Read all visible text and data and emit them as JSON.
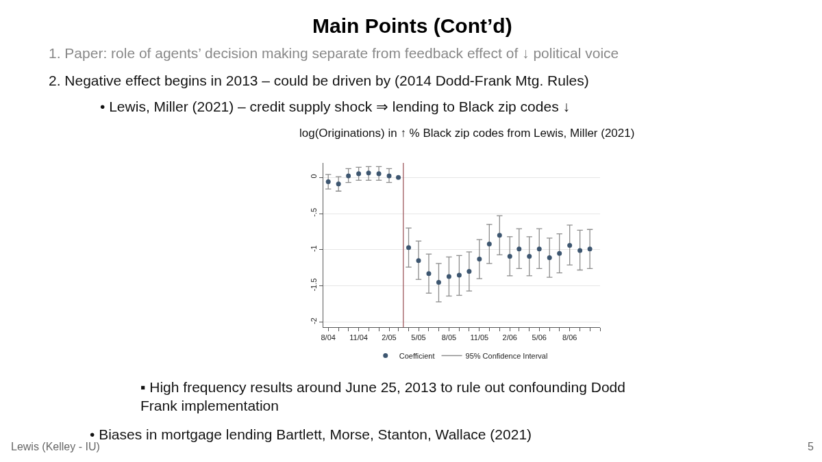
{
  "chart_data": {
    "type": "scatter",
    "title": "log(Originations) in ↑ % Black zip codes from Lewis, Miller (2021)",
    "x": [
      "2004-08",
      "2004-09",
      "2004-10",
      "2004-11",
      "2004-12",
      "2005-01",
      "2005-02",
      "2005-03",
      "2005-04",
      "2005-05",
      "2005-06",
      "2005-07",
      "2005-08",
      "2005-09",
      "2005-10",
      "2005-11",
      "2005-12",
      "2006-01",
      "2006-02",
      "2006-03",
      "2006-04",
      "2006-05",
      "2006-06",
      "2006-07",
      "2006-08",
      "2006-09",
      "2006-10"
    ],
    "series": [
      {
        "name": "Coefficient",
        "color": "#3d5670",
        "marker": "circle",
        "values": [
          -0.06,
          -0.09,
          0.02,
          0.05,
          0.06,
          0.05,
          0.02,
          0,
          -0.97,
          -1.15,
          -1.33,
          -1.45,
          -1.37,
          -1.35,
          -1.3,
          -1.13,
          -0.92,
          -0.8,
          -1.09,
          -0.99,
          -1.09,
          -0.99,
          -1.11,
          -1.05,
          -0.94,
          -1.01,
          -0.99
        ],
        "errors": [
          [
            -0.16,
            0.04
          ],
          [
            -0.19,
            0.01
          ],
          [
            -0.07,
            0.12
          ],
          [
            -0.04,
            0.14
          ],
          [
            -0.04,
            0.15
          ],
          [
            -0.04,
            0.15
          ],
          [
            -0.07,
            0.12
          ],
          null,
          [
            -1.24,
            -0.7
          ],
          [
            -1.41,
            -0.88
          ],
          [
            -1.6,
            -1.06
          ],
          [
            -1.72,
            -1.19
          ],
          [
            -1.64,
            -1.1
          ],
          [
            -1.63,
            -1.08
          ],
          [
            -1.57,
            -1.03
          ],
          [
            -1.4,
            -0.86
          ],
          [
            -1.19,
            -0.65
          ],
          [
            -1.07,
            -0.53
          ],
          [
            -1.36,
            -0.82
          ],
          [
            -1.26,
            -0.71
          ],
          [
            -1.36,
            -0.82
          ],
          [
            -1.26,
            -0.71
          ],
          [
            -1.38,
            -0.84
          ],
          [
            -1.32,
            -0.78
          ],
          [
            -1.21,
            -0.66
          ],
          [
            -1.28,
            -0.73
          ],
          [
            -1.26,
            -0.72
          ]
        ]
      }
    ],
    "xlim": [
      "2004-07-18",
      "2006-11-01"
    ],
    "xticks": [
      {
        "value": "2004-08",
        "label": "8/04"
      },
      {
        "value": "2004-09",
        "label": null
      },
      {
        "value": "2004-10",
        "label": null
      },
      {
        "value": "2004-11",
        "label": "11/04"
      },
      {
        "value": "2004-12",
        "label": null
      },
      {
        "value": "2005-01",
        "label": null
      },
      {
        "value": "2005-02",
        "label": "2/05"
      },
      {
        "value": "2005-03",
        "label": null
      },
      {
        "value": "2005-04",
        "label": null
      },
      {
        "value": "2005-05",
        "label": "5/05"
      },
      {
        "value": "2005-06",
        "label": null
      },
      {
        "value": "2005-07",
        "label": null
      },
      {
        "value": "2005-08",
        "label": "8/05"
      },
      {
        "value": "2005-09",
        "label": null
      },
      {
        "value": "2005-10",
        "label": null
      },
      {
        "value": "2005-11",
        "label": "11/05"
      },
      {
        "value": "2005-12",
        "label": null
      },
      {
        "value": "2006-01",
        "label": null
      },
      {
        "value": "2006-02",
        "label": "2/06"
      },
      {
        "value": "2006-03",
        "label": null
      },
      {
        "value": "2006-04",
        "label": null
      },
      {
        "value": "2006-05",
        "label": "5/06"
      },
      {
        "value": "2006-06",
        "label": null
      },
      {
        "value": "2006-07",
        "label": null
      },
      {
        "value": "2006-08",
        "label": "8/06"
      },
      {
        "value": "2006-09",
        "label": null
      },
      {
        "value": "2006-10",
        "label": null
      },
      {
        "value": "2006-11",
        "label": null
      }
    ],
    "ylim": [
      -2.07,
      0.2
    ],
    "yticks": [
      0,
      {
        "value": -0.5,
        "label": "-.5"
      },
      -1,
      {
        "value": -1.5,
        "label": "-1.5"
      },
      -2
    ],
    "ref_lines": [
      {
        "axis": "x",
        "value": "2005-03-16",
        "color": "#a05a60",
        "line_style": "solid"
      }
    ],
    "grid": "y",
    "legend": "bottom",
    "annotations": [
      "Main Points (Cont’d)",
      "1. Paper: role of agents’ decision making separate from feedback effect of ↓ political voice",
      "2. Negative effect begins in 2013 – could be driven by (2014 Dodd-Frank Mtg. Rules)",
      "• Lewis, Miller (2021) – credit supply shock ⇒ lending to Black zip codes ↓",
      "▪ High frequency results around June 25, 2013 to rule out confounding Dodd\nFrank implementation",
      "• Biases in mortgage lending Bartlett, Morse, Stanton, Wallace (2021)",
      "Lewis (Kelley - IU)",
      "5",
      "95% Confidence Interval"
    ]
  }
}
